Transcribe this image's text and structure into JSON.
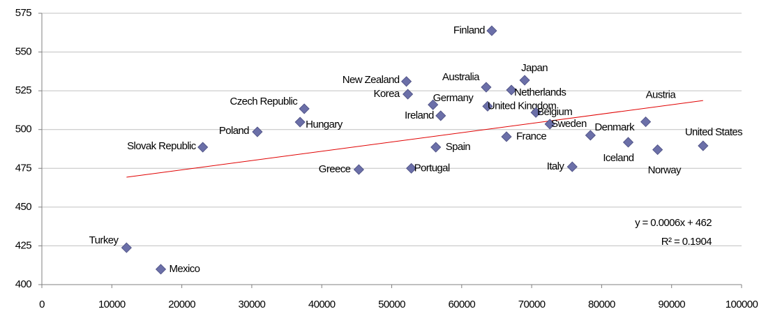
{
  "chart_data": {
    "type": "scatter",
    "labels": [
      "Finland",
      "New Zealand",
      "Korea",
      "Australia",
      "Japan",
      "Netherlands",
      "Germany",
      "United Kingdom",
      "Ireland",
      "Belgium",
      "Sweden",
      "France",
      "Spain",
      "Denmark",
      "Austria",
      "Iceland",
      "Norway",
      "United States",
      "Italy",
      "Czech Republic",
      "Hungary",
      "Poland",
      "Slovak Republic",
      "Greece",
      "Portugal",
      "Turkey",
      "Mexico"
    ],
    "x": [
      64300,
      52100,
      52300,
      63500,
      69000,
      67100,
      55900,
      63700,
      57000,
      70600,
      72600,
      66400,
      56300,
      78400,
      86300,
      83800,
      88000,
      94500,
      75800,
      37500,
      36900,
      30800,
      23000,
      45300,
      52800,
      12100,
      17000
    ],
    "values": [
      563.7,
      531,
      522.8,
      527.3,
      531.8,
      525.5,
      516,
      515,
      508.9,
      511,
      503.5,
      495.4,
      488.6,
      496.3,
      505,
      491.8,
      487,
      489.5,
      476,
      513.4,
      504.8,
      498.5,
      488.6,
      474.2,
      475,
      423.8,
      409.9
    ],
    "color": "#6b6fa8",
    "xlim": [
      0,
      100000
    ],
    "xticks": [
      0,
      10000,
      20000,
      30000,
      40000,
      50000,
      60000,
      70000,
      80000,
      90000,
      100000
    ],
    "ylim": [
      400,
      575
    ],
    "yticks": [
      400,
      425,
      450,
      475,
      500,
      525,
      550,
      575
    ],
    "grid": true,
    "trendline": {
      "slope": 0.0006,
      "intercept": 462,
      "color": "#e00000",
      "label": "y = 0.0006x + 462",
      "r2_label": "R² = 0.1904"
    }
  }
}
